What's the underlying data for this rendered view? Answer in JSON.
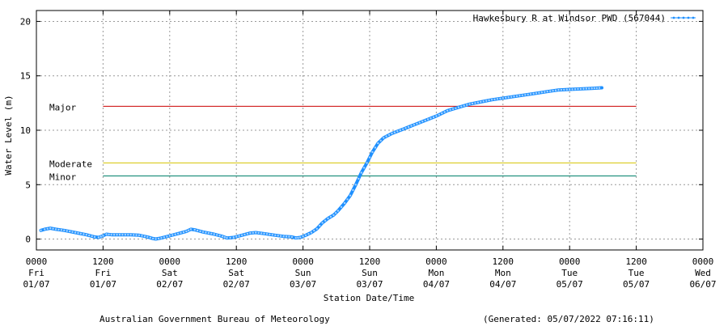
{
  "chart_data": {
    "type": "line",
    "title": "",
    "xlabel": "Station Date/Time",
    "ylabel": "Water Level (m)",
    "ylim": [
      -1,
      21
    ],
    "yticks": [
      0,
      5,
      10,
      15,
      20
    ],
    "xlim_hours": [
      0,
      120
    ],
    "grid": true,
    "legend_position": "top-right",
    "xticks": [
      {
        "h": 0,
        "l1": "0000",
        "l2": "Fri",
        "l3": "01/07"
      },
      {
        "h": 12,
        "l1": "1200",
        "l2": "Fri",
        "l3": "01/07"
      },
      {
        "h": 24,
        "l1": "0000",
        "l2": "Sat",
        "l3": "02/07"
      },
      {
        "h": 36,
        "l1": "1200",
        "l2": "Sat",
        "l3": "02/07"
      },
      {
        "h": 48,
        "l1": "0000",
        "l2": "Sun",
        "l3": "03/07"
      },
      {
        "h": 60,
        "l1": "1200",
        "l2": "Sun",
        "l3": "03/07"
      },
      {
        "h": 72,
        "l1": "0000",
        "l2": "Mon",
        "l3": "04/07"
      },
      {
        "h": 84,
        "l1": "1200",
        "l2": "Mon",
        "l3": "04/07"
      },
      {
        "h": 96,
        "l1": "0000",
        "l2": "Tue",
        "l3": "05/07"
      },
      {
        "h": 108,
        "l1": "1200",
        "l2": "Tue",
        "l3": "05/07"
      },
      {
        "h": 120,
        "l1": "0000",
        "l2": "Wed",
        "l3": "06/07"
      }
    ],
    "series": [
      {
        "name": "Hawkesbury R at Windsor PWD (567044)",
        "color": "#1e90ff",
        "points": [
          [
            0.8,
            0.8
          ],
          [
            1.5,
            0.9
          ],
          [
            2.5,
            1.0
          ],
          [
            3.5,
            0.9
          ],
          [
            5,
            0.8
          ],
          [
            7,
            0.6
          ],
          [
            9,
            0.4
          ],
          [
            10.5,
            0.2
          ],
          [
            11.2,
            0.15
          ],
          [
            12,
            0.3
          ],
          [
            12.6,
            0.45
          ],
          [
            13.5,
            0.4
          ],
          [
            15,
            0.4
          ],
          [
            17,
            0.4
          ],
          [
            18.5,
            0.35
          ],
          [
            20,
            0.2
          ],
          [
            21,
            0.05
          ],
          [
            21.5,
            0.0
          ],
          [
            22.5,
            0.1
          ],
          [
            24,
            0.3
          ],
          [
            25.5,
            0.5
          ],
          [
            27,
            0.7
          ],
          [
            27.8,
            0.9
          ],
          [
            28.5,
            0.85
          ],
          [
            30,
            0.65
          ],
          [
            32,
            0.45
          ],
          [
            33.5,
            0.25
          ],
          [
            34.3,
            0.1
          ],
          [
            35.5,
            0.15
          ],
          [
            37,
            0.35
          ],
          [
            38.5,
            0.55
          ],
          [
            39.5,
            0.6
          ],
          [
            41,
            0.5
          ],
          [
            43,
            0.35
          ],
          [
            44.5,
            0.25
          ],
          [
            46,
            0.2
          ],
          [
            46.7,
            0.1
          ],
          [
            47.5,
            0.15
          ],
          [
            48.5,
            0.35
          ],
          [
            49.5,
            0.6
          ],
          [
            50.5,
            0.95
          ],
          [
            51.5,
            1.5
          ],
          [
            52.5,
            1.9
          ],
          [
            53.5,
            2.2
          ],
          [
            54.3,
            2.6
          ],
          [
            55.5,
            3.3
          ],
          [
            56.5,
            4.0
          ],
          [
            57.5,
            5.0
          ],
          [
            58.5,
            6.1
          ],
          [
            59.5,
            7.0
          ],
          [
            60.5,
            8.0
          ],
          [
            61.5,
            8.8
          ],
          [
            62.5,
            9.3
          ],
          [
            64,
            9.7
          ],
          [
            66,
            10.1
          ],
          [
            68,
            10.5
          ],
          [
            70,
            10.9
          ],
          [
            72,
            11.3
          ],
          [
            74,
            11.8
          ],
          [
            76,
            12.1
          ],
          [
            78,
            12.4
          ],
          [
            80,
            12.6
          ],
          [
            82,
            12.8
          ],
          [
            84,
            12.95
          ],
          [
            86,
            13.1
          ],
          [
            88,
            13.25
          ],
          [
            90,
            13.4
          ],
          [
            92,
            13.55
          ],
          [
            94,
            13.7
          ],
          [
            96,
            13.75
          ],
          [
            98,
            13.8
          ],
          [
            100,
            13.85
          ],
          [
            101.8,
            13.9
          ]
        ]
      }
    ],
    "thresholds": [
      {
        "name": "Major",
        "value": 12.2,
        "color": "#cc0000"
      },
      {
        "name": "Moderate",
        "value": 7.0,
        "color": "#d4c400"
      },
      {
        "name": "Minor",
        "value": 5.8,
        "color": "#00806a"
      }
    ],
    "threshold_x_range_hours": [
      12,
      108
    ]
  },
  "footer": {
    "left": "Australian Government Bureau of Meteorology",
    "right": "(Generated: 05/07/2022 07:16:11)"
  }
}
